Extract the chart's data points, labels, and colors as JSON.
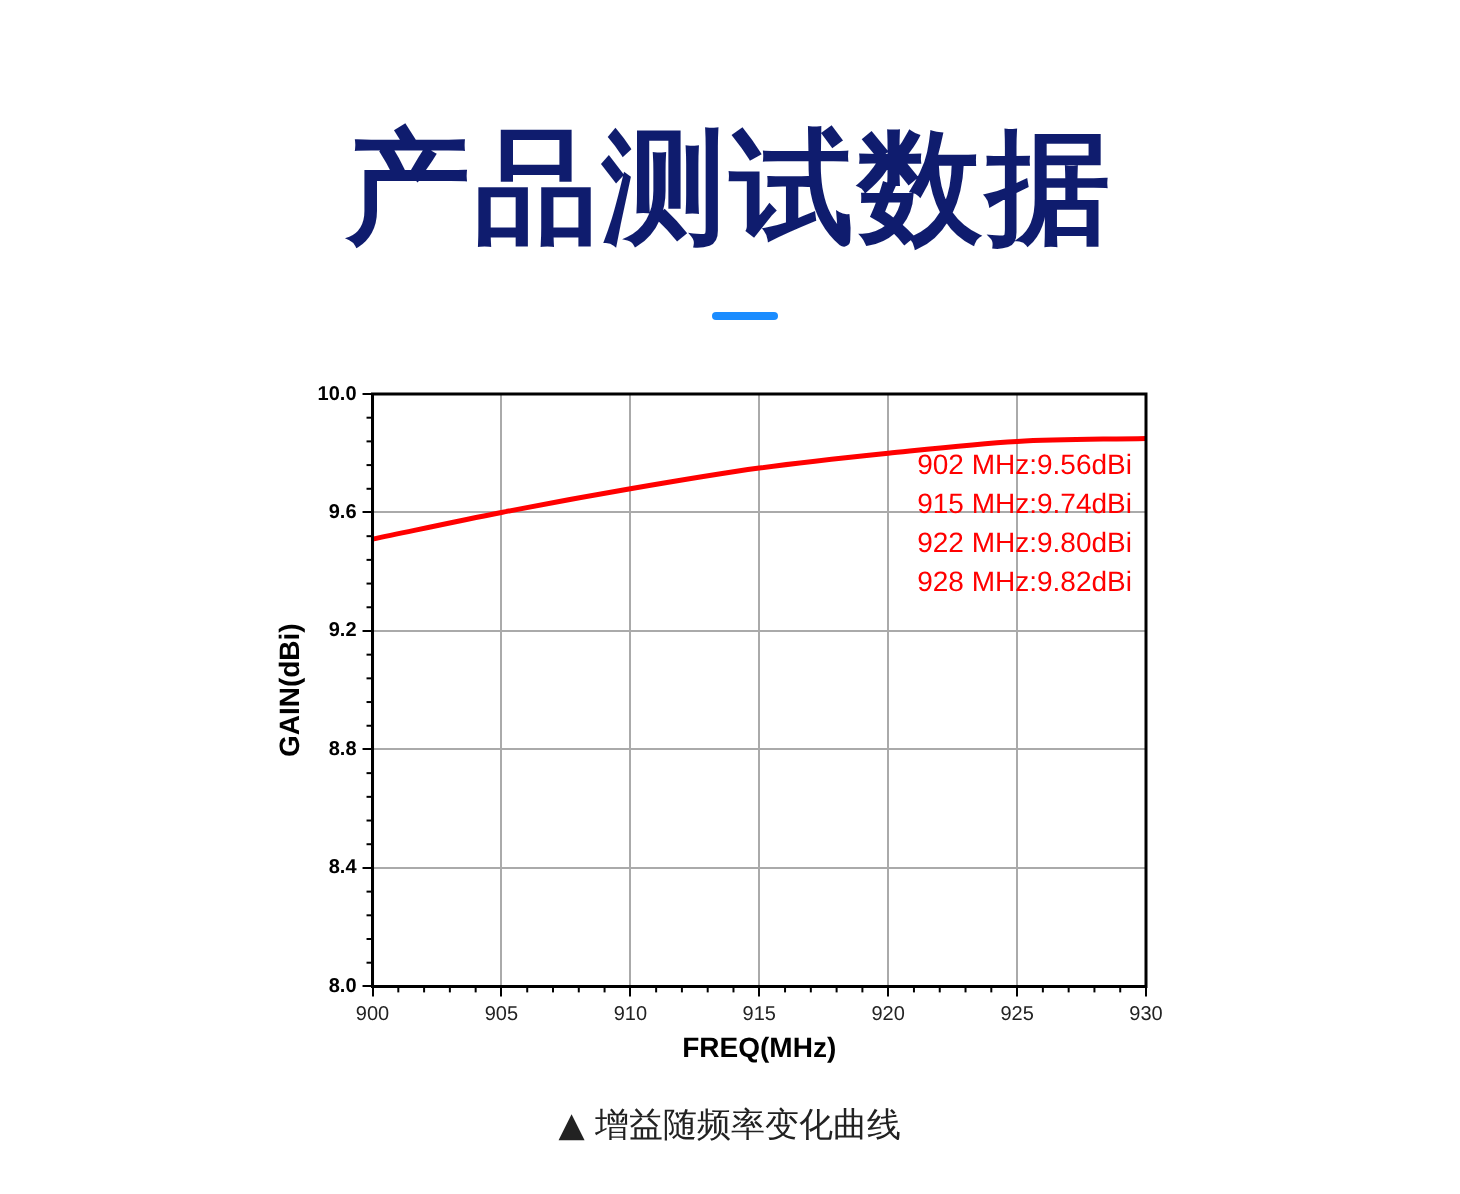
{
  "chart_data": {
    "type": "line",
    "title": "产品测试数据",
    "xlabel": "FREQ(MHz)",
    "ylabel": "GAIN(dBi)",
    "x": [
      900,
      905,
      910,
      915,
      920,
      925,
      930
    ],
    "series": [
      {
        "color": "#ff0000",
        "values": [
          9.51,
          9.6,
          9.68,
          9.75,
          9.8,
          9.84,
          9.85
        ]
      }
    ],
    "xlim": [
      900,
      930
    ],
    "xticks": [
      900,
      905,
      910,
      915,
      920,
      925,
      930
    ],
    "ylim": [
      8.0,
      10.0
    ],
    "yticks": [
      {
        "value": 8.0,
        "label": "8.0"
      },
      {
        "value": 8.4,
        "label": "8.4"
      },
      {
        "value": 8.8,
        "label": "8.8"
      },
      {
        "value": 9.2,
        "label": "9.2"
      },
      {
        "value": 9.6,
        "label": "9.6"
      },
      {
        "value": 10.0,
        "label": "10.0"
      }
    ],
    "grid": true,
    "legend": false,
    "marker": "none",
    "line_style": "solid",
    "annotations": [
      "902 MHz:9.56dBi",
      "915 MHz:9.74dBi",
      "922 MHz:9.80dBi",
      "928 MHz:9.82dBi",
      "▲ 增益随频率变化曲线"
    ]
  }
}
